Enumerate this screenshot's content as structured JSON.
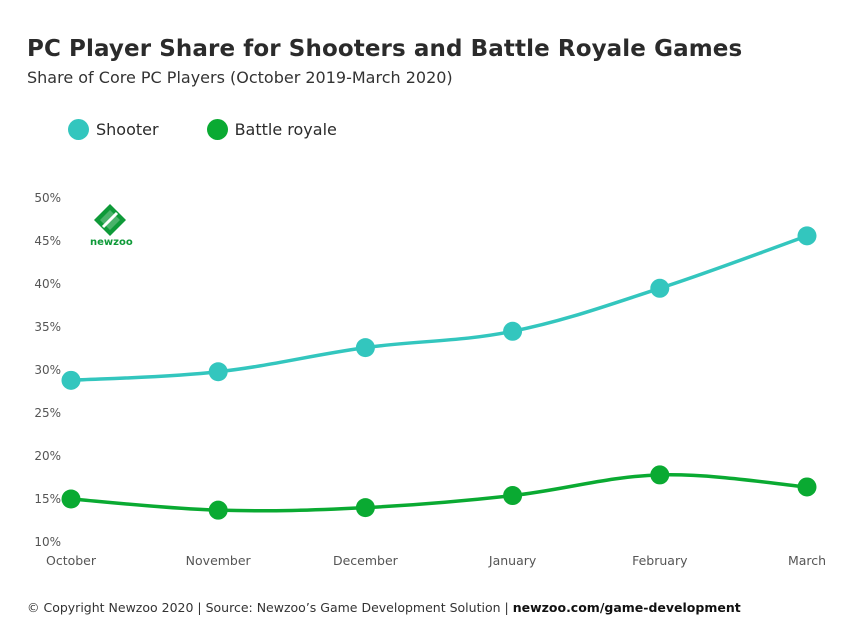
{
  "header": {
    "title": "PC Player Share for Shooters and Battle Royale Games",
    "subtitle": "Share of Core PC Players (October 2019-March 2020)"
  },
  "logo": {
    "text": "newzoo",
    "icon": "newzoo-logo-icon"
  },
  "footer": {
    "text": "© Copyright Newzoo 2020 | Source: Newzoo’s Game Development Solution | ",
    "link": "newzoo.com/game-development"
  },
  "colors": {
    "shooter": "#33c6be",
    "battle_royale": "#0aaa32"
  },
  "chart_data": {
    "type": "line",
    "categories": [
      "October",
      "November",
      "December",
      "January",
      "February",
      "March"
    ],
    "series": [
      {
        "name": "Shooter",
        "values": [
          28.8,
          29.8,
          32.6,
          34.5,
          39.5,
          45.6
        ]
      },
      {
        "name": "Battle royale",
        "values": [
          15.0,
          13.7,
          14.0,
          15.4,
          17.8,
          16.4
        ]
      }
    ],
    "yticks": [
      "10%",
      "15%",
      "20%",
      "25%",
      "30%",
      "35%",
      "40%",
      "45%",
      "50%"
    ],
    "ylim": [
      10,
      50
    ],
    "title": "PC Player Share for Shooters and Battle Royale Games",
    "subtitle": "Share of Core PC Players (October 2019-March 2020)",
    "legend": "top-left",
    "grid": false
  }
}
